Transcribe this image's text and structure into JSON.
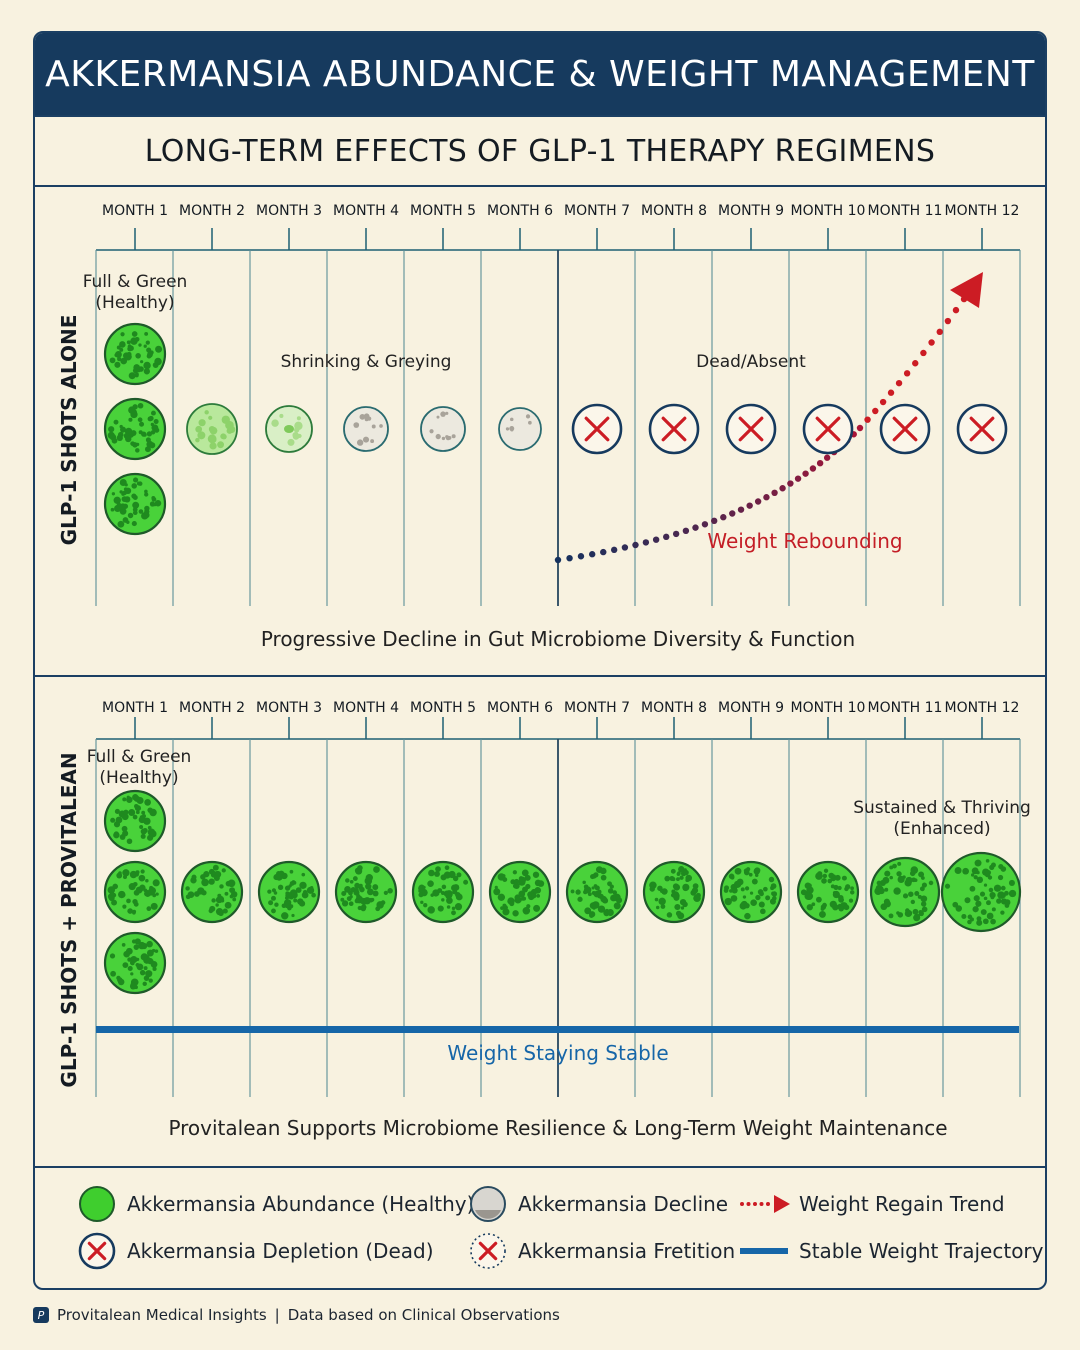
{
  "header": {
    "title": "AKKERMANSIA ABUNDANCE & WEIGHT MANAGEMENT"
  },
  "subtitle": "LONG-TERM EFFECTS OF GLP-1 THERAPY REGIMENS",
  "months": [
    "MONTH 1",
    "MONTH 2",
    "MONTH 3",
    "MONTH 4",
    "MONTH 5",
    "MONTH 6",
    "MONTH 7",
    "MONTH 8",
    "MONTH 9",
    "MONTH 10",
    "MONTH 11",
    "MONTH 12"
  ],
  "panel1": {
    "side_label": "GLP-1 SHOTS ALONE",
    "note_healthy_line1": "Full & Green",
    "note_healthy_line2": "(Healthy)",
    "note_shrinking": "Shrinking & Greying",
    "note_dead": "Dead/Absent",
    "trend_label": "Weight Rebounding",
    "caption": "Progressive Decline in Gut Microbiome Diversity & Function",
    "states": [
      "healthy",
      "fading",
      "fading",
      "grey",
      "grey",
      "grey",
      "dead",
      "dead",
      "dead",
      "dead",
      "dead",
      "dead"
    ]
  },
  "panel2": {
    "side_label": "GLP-1 SHOTS + PROVITALEAN",
    "note_healthy_line1": "Full & Green",
    "note_healthy_line2": "(Healthy)",
    "note_sustained_line1": "Sustained & Thriving",
    "note_sustained_line2": "(Enhanced)",
    "stable_label": "Weight Staying Stable",
    "caption": "Provitalean Supports Microbiome Resilience & Long-Term Weight Maintenance",
    "states": [
      "healthy",
      "healthy",
      "healthy",
      "healthy",
      "healthy",
      "healthy",
      "healthy",
      "healthy",
      "healthy",
      "healthy",
      "enhanced",
      "enhanced"
    ]
  },
  "legend": [
    {
      "icon": "healthy-circle-icon",
      "label": "Akkermansia Abundance (Healthy)"
    },
    {
      "icon": "decline-circle-icon",
      "label": "Akkermansia Decline"
    },
    {
      "icon": "regain-arrow-icon",
      "label": "Weight Regain Trend"
    },
    {
      "icon": "depletion-x-icon",
      "label": "Akkermansia Depletion (Dead)"
    },
    {
      "icon": "fretition-x-icon",
      "label": "Akkermansia Fretition"
    },
    {
      "icon": "stable-line-icon",
      "label": "Stable Weight Trajectory"
    }
  ],
  "footer": {
    "brand": "Provitalean Medical Insights",
    "source": "Data based on Clinical Observations"
  },
  "colors": {
    "navy": "#163a5e",
    "green": "#3fce2e",
    "red": "#cc1c24",
    "blue": "#1666a8"
  }
}
